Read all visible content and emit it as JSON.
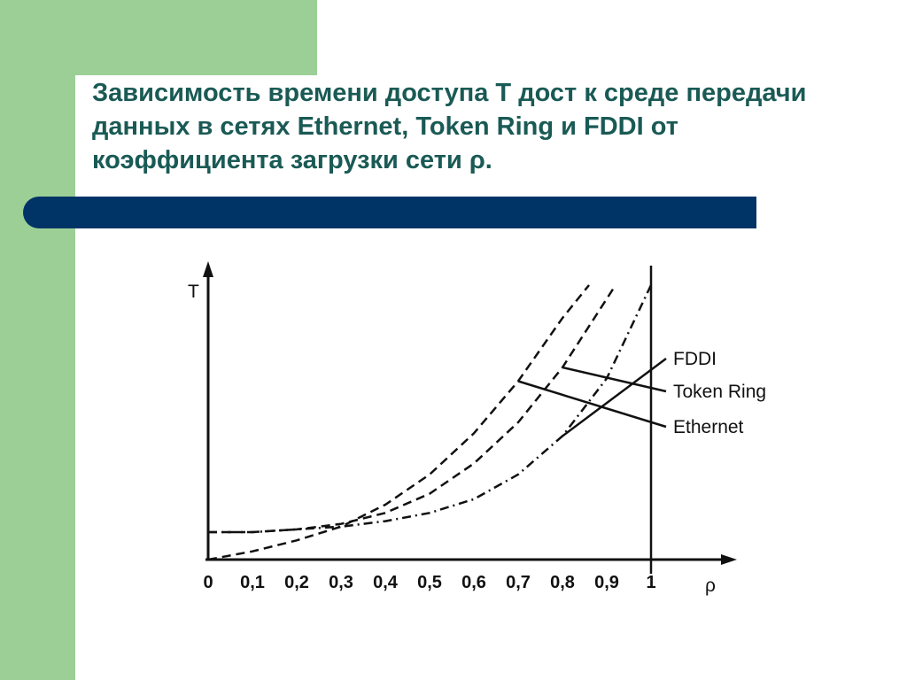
{
  "slide": {
    "title": "Зависимость времени доступа Т дост к среде передачи данных в сетях Ethernet, Token Ring и FDDI от коэффициента загрузки  сети ρ.",
    "colors": {
      "green": "#9ccf95",
      "title": "#1a5a55",
      "bar": "#003366"
    }
  },
  "chart_data": {
    "type": "line",
    "xlabel": "ρ",
    "ylabel": "T",
    "xlim": [
      0,
      1.15
    ],
    "ylim": [
      0,
      1
    ],
    "x_ticks": [
      "0",
      "0,1",
      "0,2",
      "0,3",
      "0,4",
      "0,5",
      "0,6",
      "0,7",
      "0,8",
      "0,9",
      "1"
    ],
    "series": [
      {
        "name": "Ethernet",
        "style": "dashed",
        "x": [
          0,
          0.1,
          0.2,
          0.3,
          0.4,
          0.5,
          0.6,
          0.7,
          0.8,
          0.86
        ],
        "y": [
          0,
          0.03,
          0.07,
          0.12,
          0.2,
          0.31,
          0.46,
          0.65,
          0.88,
          1.0
        ]
      },
      {
        "name": "Token Ring",
        "style": "dashed",
        "x": [
          0,
          0.1,
          0.2,
          0.3,
          0.4,
          0.5,
          0.6,
          0.7,
          0.8,
          0.9,
          0.92
        ],
        "y": [
          0.1,
          0.1,
          0.11,
          0.13,
          0.17,
          0.24,
          0.35,
          0.5,
          0.7,
          0.95,
          1.0
        ]
      },
      {
        "name": "FDDI",
        "style": "dash-dot",
        "x": [
          0,
          0.1,
          0.2,
          0.3,
          0.4,
          0.5,
          0.6,
          0.7,
          0.8,
          0.9,
          1.0
        ],
        "y": [
          0.1,
          0.1,
          0.11,
          0.12,
          0.14,
          0.17,
          0.22,
          0.31,
          0.45,
          0.66,
          1.0
        ]
      }
    ]
  }
}
